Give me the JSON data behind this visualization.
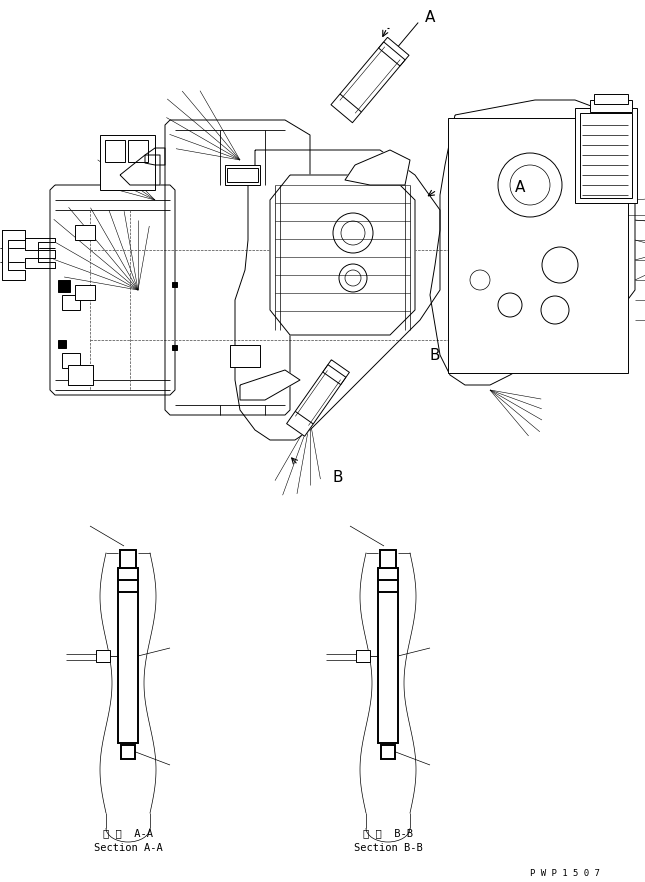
{
  "bg_color": "#ffffff",
  "line_color": "#000000",
  "lw": 0.7,
  "tlw": 1.4,
  "section_aa_label1": "断 面  A-A",
  "section_aa_label2": "Section A-A",
  "section_bb_label1": "断 面  B-B",
  "section_bb_label2": "Section B-B",
  "watermark": "P W P 1 5 0 7",
  "font_size_section": 7.5,
  "font_size_watermark": 6.5,
  "label_A": "A",
  "label_B": "B"
}
